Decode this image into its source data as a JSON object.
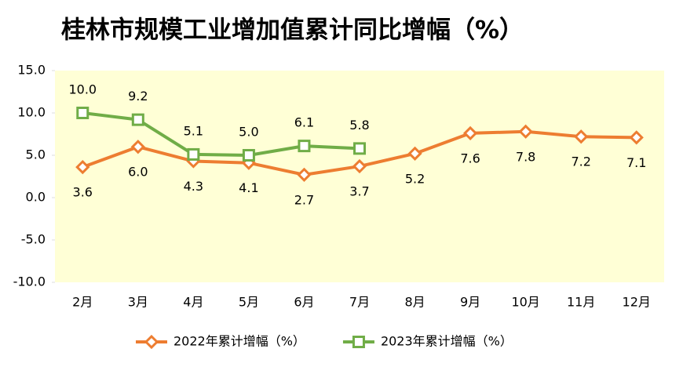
{
  "chart_data": {
    "type": "line",
    "title": "桂林市规模工业增加值累计同比增幅（%）",
    "categories": [
      "2月",
      "3月",
      "4月",
      "5月",
      "6月",
      "7月",
      "8月",
      "9月",
      "10月",
      "11月",
      "12月"
    ],
    "series": [
      {
        "name": "2022年累计增幅（%）",
        "color": "#ed7d31",
        "marker": "diamond",
        "label_position": "below",
        "values": [
          3.6,
          6.0,
          4.3,
          4.1,
          2.7,
          3.7,
          5.2,
          7.6,
          7.8,
          7.2,
          7.1
        ],
        "value_labels": [
          "3.6",
          "6.0",
          "4.3",
          "4.1",
          "2.7",
          "3.7",
          "5.2",
          "7.6",
          "7.8",
          "7.2",
          "7.1"
        ]
      },
      {
        "name": "2023年累计增幅（%）",
        "color": "#70ad47",
        "marker": "square",
        "label_position": "above",
        "values": [
          10.0,
          9.2,
          5.1,
          5.0,
          6.1,
          5.8,
          null,
          null,
          null,
          null,
          null
        ],
        "value_labels": [
          "10.0",
          "9.2",
          "5.1",
          "5.0",
          "6.1",
          "5.8",
          null,
          null,
          null,
          null,
          null
        ]
      }
    ],
    "ylim": [
      -10,
      15
    ],
    "yticks": [
      {
        "value": -10,
        "label": "-10.0"
      },
      {
        "value": -5,
        "label": "-5.0"
      },
      {
        "value": 0,
        "label": "0.0"
      },
      {
        "value": 5,
        "label": "5.0"
      },
      {
        "value": 10,
        "label": "10.0"
      },
      {
        "value": 15,
        "label": "15.0"
      }
    ],
    "grid": false,
    "legend": "bottom"
  }
}
